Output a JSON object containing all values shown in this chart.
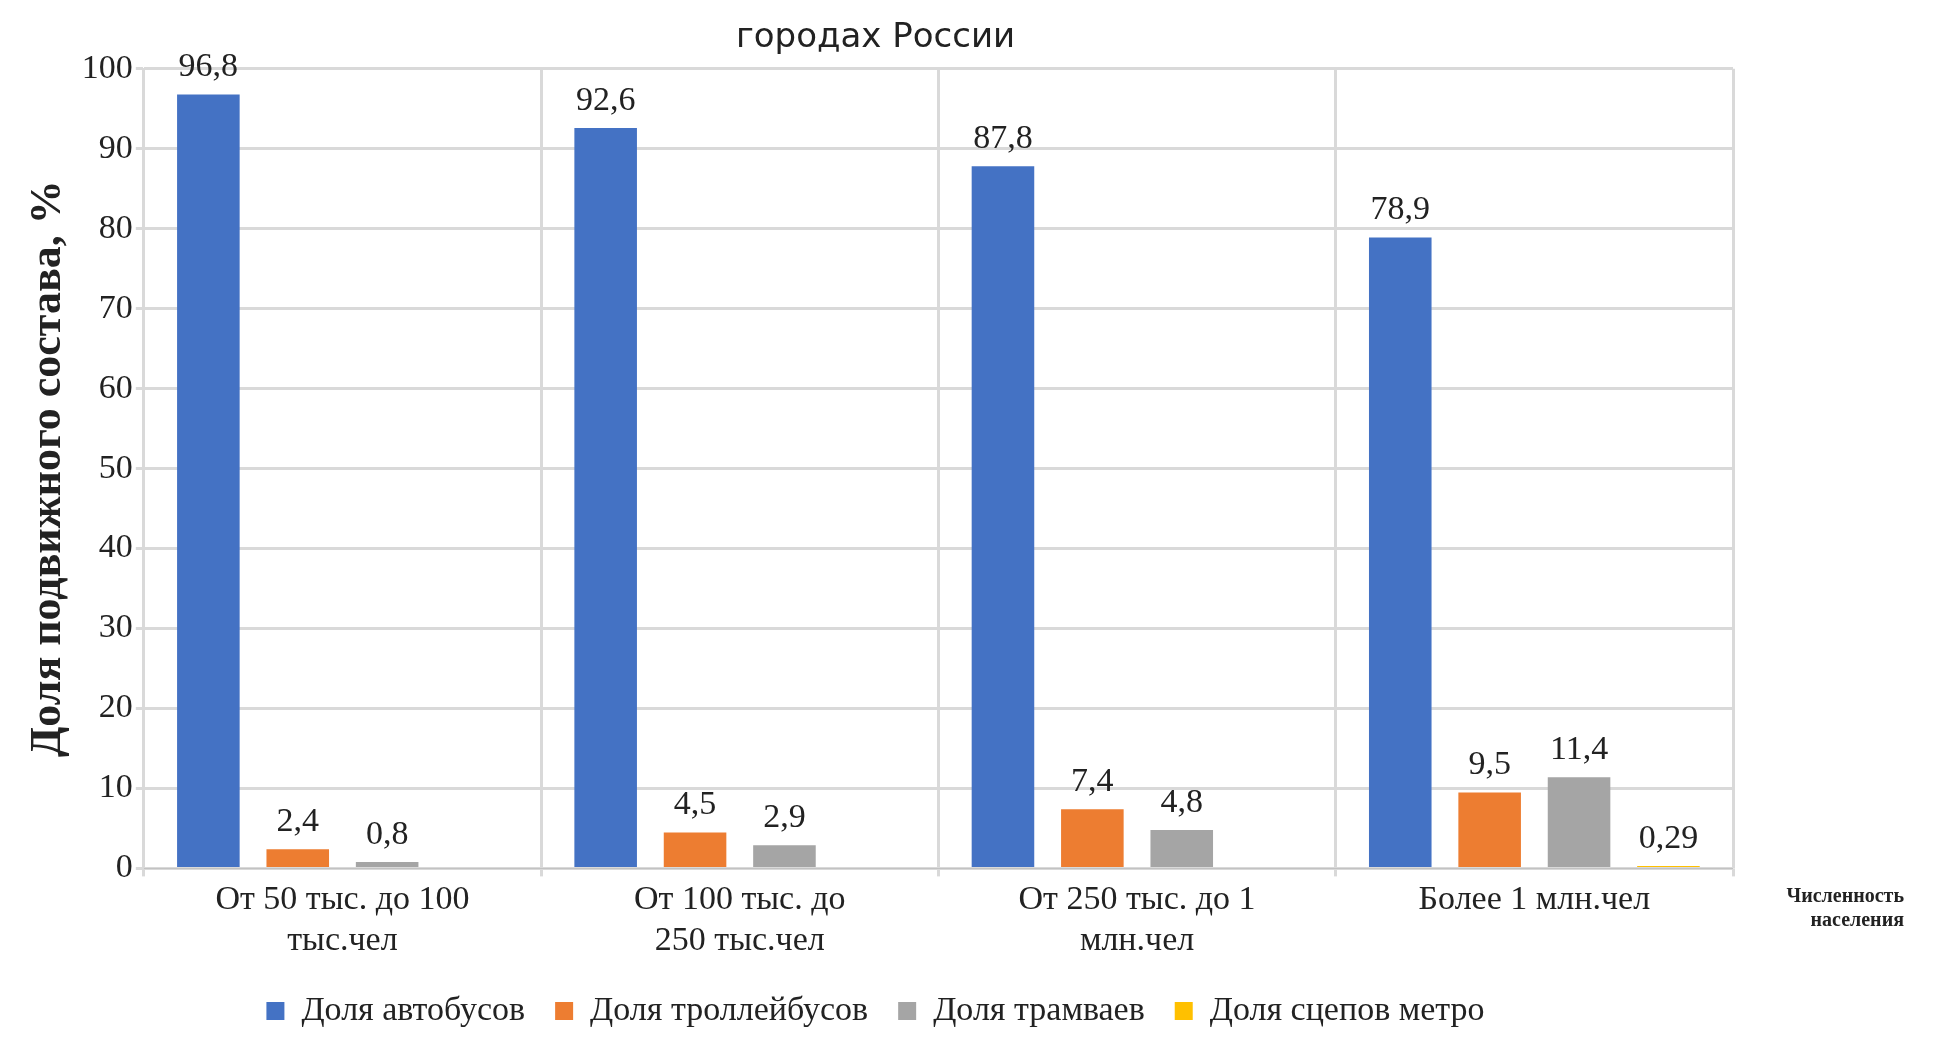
{
  "chart_data": {
    "type": "bar",
    "title": "городах России",
    "xlabel": "Численность населения",
    "ylabel": "Доля подвижного состава, %",
    "categories": [
      "От 50 тыс. до 100 тыс.чел",
      "От 100 тыс. до 250 тыс.чел",
      "От 250 тыс. до 1 млн.чел",
      "Более 1 млн.чел"
    ],
    "series": [
      {
        "name": "Доля автобусов",
        "color": "#4472c4",
        "values": [
          96.8,
          92.6,
          87.8,
          78.9
        ],
        "value_labels": [
          "96,8",
          "92,6",
          "87,8",
          "78,9"
        ]
      },
      {
        "name": "Доля троллейбусов",
        "color": "#ed7d31",
        "values": [
          2.4,
          4.5,
          7.4,
          9.5
        ],
        "value_labels": [
          "2,4",
          "4,5",
          "7,4",
          "9,5"
        ]
      },
      {
        "name": "Доля трамваев",
        "color": "#a5a5a5",
        "values": [
          0.8,
          2.9,
          4.8,
          11.4
        ],
        "value_labels": [
          "0,8",
          "2,9",
          "4,8",
          "11,4"
        ]
      },
      {
        "name": "Доля сцепов метро",
        "color": "#ffc000",
        "values": [
          null,
          null,
          null,
          0.29
        ],
        "value_labels": [
          null,
          null,
          null,
          "0,29"
        ]
      }
    ],
    "ylim": [
      0,
      100
    ],
    "yticks": [
      0,
      10,
      20,
      30,
      40,
      50,
      60,
      70,
      80,
      90,
      100
    ],
    "grid": true,
    "legend": "bottom"
  }
}
